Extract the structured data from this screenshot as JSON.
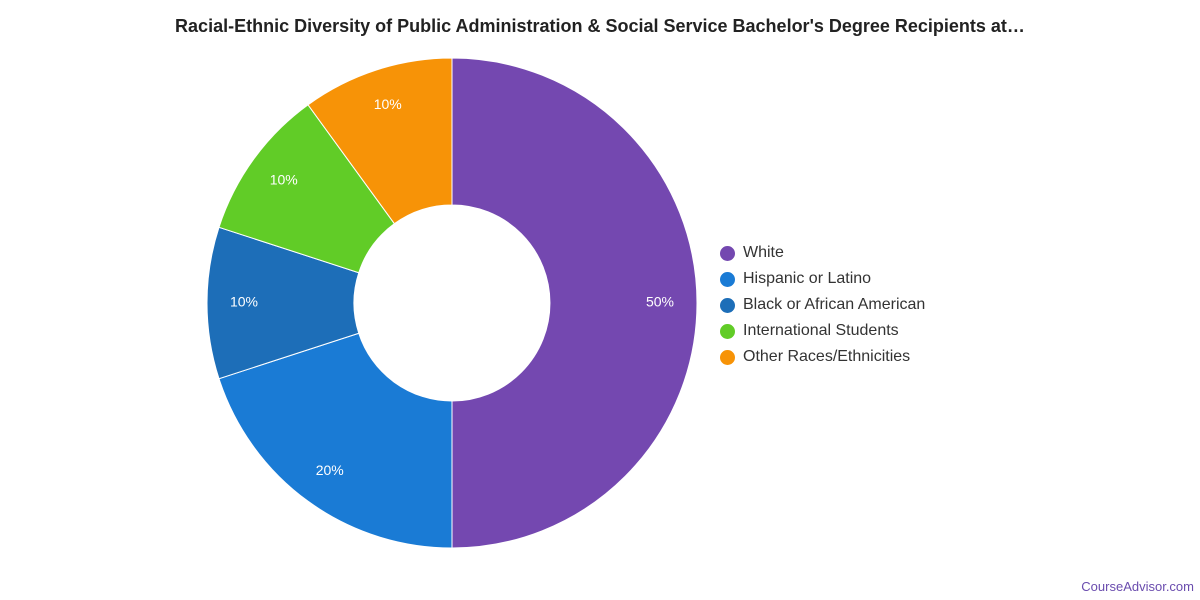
{
  "chart_data": {
    "type": "pie",
    "title": "Racial-Ethnic Diversity of Public Administration & Social Service Bachelor's Degree Recipients at…",
    "legend_position": "right",
    "donut": true,
    "slices": [
      {
        "name": "White",
        "value": 50,
        "label": "50%",
        "color": "#7448b0"
      },
      {
        "name": "Hispanic or Latino",
        "value": 20,
        "label": "20%",
        "color": "#1a7bd5"
      },
      {
        "name": "Black or African American",
        "value": 10,
        "label": "10%",
        "color": "#1d6eb8"
      },
      {
        "name": "International Students",
        "value": 10,
        "label": "10%",
        "color": "#61cc27"
      },
      {
        "name": "Other Races/Ethnicities",
        "value": 10,
        "label": "10%",
        "color": "#f79307"
      }
    ]
  },
  "footer": {
    "credit": "CourseAdvisor.com"
  }
}
